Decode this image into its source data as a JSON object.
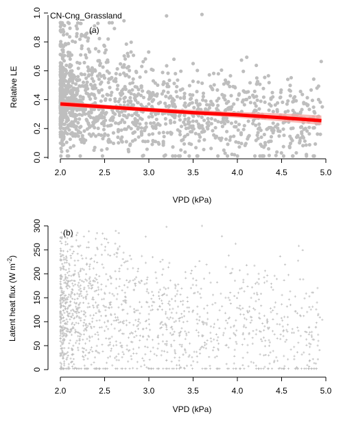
{
  "colors": {
    "points": "#bebebe",
    "trend_line": "#ff0000",
    "confidence_band": "#f4a6a0",
    "axes": "#000000",
    "background": "#ffffff"
  },
  "chart_data": [
    {
      "panel_label": "(a)",
      "site_label": "CN-Cng_Grassland",
      "type": "scatter",
      "point_style": "filled-circle",
      "xlabel": "VPD (kPa)",
      "ylabel": "Relative LE",
      "xlim": [
        1.95,
        5.0
      ],
      "ylim": [
        0.0,
        1.0
      ],
      "xticks": [
        "2.0",
        "2.5",
        "3.0",
        "3.5",
        "4.0",
        "4.5",
        "5.0"
      ],
      "yticks": [
        "0.0",
        "0.2",
        "0.4",
        "0.6",
        "0.8",
        "1.0"
      ],
      "grid": false,
      "density_note": "about 1500 points, densest between VPD 2.0 and 2.6 kPa, sparse beyond 3.5 kPa",
      "points": [
        [
          2.0,
          0.35
        ],
        [
          2.02,
          0.12
        ],
        [
          2.03,
          0.55
        ],
        [
          2.05,
          0.28
        ],
        [
          2.06,
          0.78
        ],
        [
          2.08,
          0.41
        ],
        [
          2.1,
          0.19
        ],
        [
          2.11,
          0.63
        ],
        [
          2.13,
          0.33
        ],
        [
          2.15,
          0.08
        ],
        [
          2.16,
          0.47
        ],
        [
          2.18,
          0.91
        ],
        [
          2.2,
          0.24
        ],
        [
          2.21,
          0.38
        ],
        [
          2.23,
          0.71
        ],
        [
          2.25,
          0.15
        ],
        [
          2.26,
          0.52
        ],
        [
          2.28,
          0.3
        ],
        [
          2.3,
          0.86
        ],
        [
          2.31,
          0.44
        ],
        [
          2.33,
          0.21
        ],
        [
          2.35,
          0.6
        ],
        [
          2.36,
          0.36
        ],
        [
          2.38,
          0.05
        ],
        [
          2.4,
          0.48
        ],
        [
          2.42,
          0.27
        ],
        [
          2.44,
          0.67
        ],
        [
          2.46,
          0.39
        ],
        [
          2.48,
          0.13
        ],
        [
          2.5,
          0.55
        ],
        [
          2.52,
          0.31
        ],
        [
          2.54,
          0.82
        ],
        [
          2.56,
          0.22
        ],
        [
          2.58,
          0.45
        ],
        [
          2.6,
          0.17
        ],
        [
          2.63,
          0.58
        ],
        [
          2.66,
          0.34
        ],
        [
          2.7,
          0.26
        ],
        [
          2.73,
          0.49
        ],
        [
          2.76,
          0.72
        ],
        [
          2.8,
          0.2
        ],
        [
          2.84,
          0.41
        ],
        [
          2.88,
          0.29
        ],
        [
          2.92,
          0.63
        ],
        [
          2.96,
          0.11
        ],
        [
          3.0,
          0.37
        ],
        [
          3.05,
          0.53
        ],
        [
          3.1,
          0.23
        ],
        [
          3.15,
          0.44
        ],
        [
          3.2,
          0.98
        ],
        [
          3.25,
          0.3
        ],
        [
          3.3,
          0.58
        ],
        [
          3.35,
          0.18
        ],
        [
          3.4,
          0.42
        ],
        [
          3.45,
          0.27
        ],
        [
          3.5,
          0.65
        ],
        [
          3.55,
          0.33
        ],
        [
          3.6,
          0.99
        ],
        [
          3.66,
          0.21
        ],
        [
          3.72,
          0.47
        ],
        [
          3.78,
          0.36
        ],
        [
          3.84,
          0.25
        ],
        [
          3.9,
          0.52
        ],
        [
          3.96,
          0.31
        ],
        [
          4.02,
          0.44
        ],
        [
          4.08,
          0.22
        ],
        [
          4.15,
          0.38
        ],
        [
          4.22,
          0.55
        ],
        [
          4.3,
          0.28
        ],
        [
          4.38,
          0.41
        ],
        [
          4.45,
          0.33
        ],
        [
          4.52,
          0.24
        ],
        [
          4.6,
          0.46
        ],
        [
          4.68,
          0.3
        ],
        [
          4.75,
          0.38
        ],
        [
          4.82,
          0.27
        ],
        [
          4.9,
          0.48
        ],
        [
          4.96,
          0.35
        ]
      ],
      "trend": {
        "type": "line",
        "x": [
          2.0,
          2.5,
          3.0,
          3.5,
          4.0,
          4.5,
          4.95
        ],
        "y": [
          0.37,
          0.35,
          0.33,
          0.31,
          0.295,
          0.275,
          0.255
        ],
        "ci_upper": [
          0.39,
          0.365,
          0.345,
          0.33,
          0.315,
          0.305,
          0.29
        ],
        "ci_lower": [
          0.35,
          0.335,
          0.315,
          0.295,
          0.275,
          0.25,
          0.225
        ]
      }
    },
    {
      "panel_label": "(b)",
      "type": "scatter",
      "point_style": "plus",
      "xlabel": "VPD (kPa)",
      "ylabel_main": "Latent heat flux (W m",
      "ylabel_sup": "-2",
      "ylabel_close": ")",
      "xlim": [
        1.95,
        5.0
      ],
      "ylim": [
        0,
        300
      ],
      "xticks": [
        "2.0",
        "2.5",
        "3.0",
        "3.5",
        "4.0",
        "4.5",
        "5.0"
      ],
      "yticks": [
        "0",
        "50",
        "100",
        "150",
        "200",
        "250",
        "300"
      ],
      "grid": false,
      "density_note": "about 1500 points, densest between VPD 2.0 and 2.6 kPa and 20-150 W m-2",
      "points": [
        [
          2.0,
          90
        ],
        [
          2.02,
          40
        ],
        [
          2.03,
          160
        ],
        [
          2.05,
          75
        ],
        [
          2.06,
          230
        ],
        [
          2.08,
          120
        ],
        [
          2.1,
          55
        ],
        [
          2.11,
          185
        ],
        [
          2.13,
          95
        ],
        [
          2.15,
          22
        ],
        [
          2.16,
          140
        ],
        [
          2.18,
          270
        ],
        [
          2.2,
          70
        ],
        [
          2.21,
          110
        ],
        [
          2.23,
          210
        ],
        [
          2.25,
          45
        ],
        [
          2.26,
          150
        ],
        [
          2.28,
          85
        ],
        [
          2.3,
          255
        ],
        [
          2.31,
          130
        ],
        [
          2.33,
          60
        ],
        [
          2.35,
          175
        ],
        [
          2.36,
          100
        ],
        [
          2.38,
          15
        ],
        [
          2.4,
          140
        ],
        [
          2.42,
          78
        ],
        [
          2.44,
          195
        ],
        [
          2.46,
          112
        ],
        [
          2.48,
          38
        ],
        [
          2.5,
          160
        ],
        [
          2.52,
          90
        ],
        [
          2.54,
          240
        ],
        [
          2.56,
          65
        ],
        [
          2.58,
          130
        ],
        [
          2.6,
          50
        ],
        [
          2.63,
          170
        ],
        [
          2.66,
          98
        ],
        [
          2.7,
          75
        ],
        [
          2.73,
          145
        ],
        [
          2.76,
          210
        ],
        [
          2.8,
          58
        ],
        [
          2.84,
          120
        ],
        [
          2.88,
          85
        ],
        [
          2.92,
          185
        ],
        [
          2.96,
          32
        ],
        [
          3.0,
          105
        ],
        [
          3.05,
          155
        ],
        [
          3.1,
          68
        ],
        [
          3.15,
          125
        ],
        [
          3.2,
          298
        ],
        [
          3.25,
          88
        ],
        [
          3.3,
          170
        ],
        [
          3.35,
          52
        ],
        [
          3.4,
          122
        ],
        [
          3.45,
          78
        ],
        [
          3.5,
          190
        ],
        [
          3.55,
          96
        ],
        [
          3.6,
          300
        ],
        [
          3.66,
          61
        ],
        [
          3.72,
          136
        ],
        [
          3.78,
          104
        ],
        [
          3.84,
          72
        ],
        [
          3.9,
          150
        ],
        [
          3.96,
          90
        ],
        [
          4.02,
          128
        ],
        [
          4.08,
          64
        ],
        [
          4.15,
          110
        ],
        [
          4.22,
          160
        ],
        [
          4.3,
          82
        ],
        [
          4.38,
          120
        ],
        [
          4.45,
          95
        ],
        [
          4.52,
          70
        ],
        [
          4.6,
          135
        ],
        [
          4.68,
          88
        ],
        [
          4.75,
          112
        ],
        [
          4.82,
          78
        ],
        [
          4.9,
          140
        ],
        [
          4.96,
          104
        ]
      ]
    }
  ]
}
